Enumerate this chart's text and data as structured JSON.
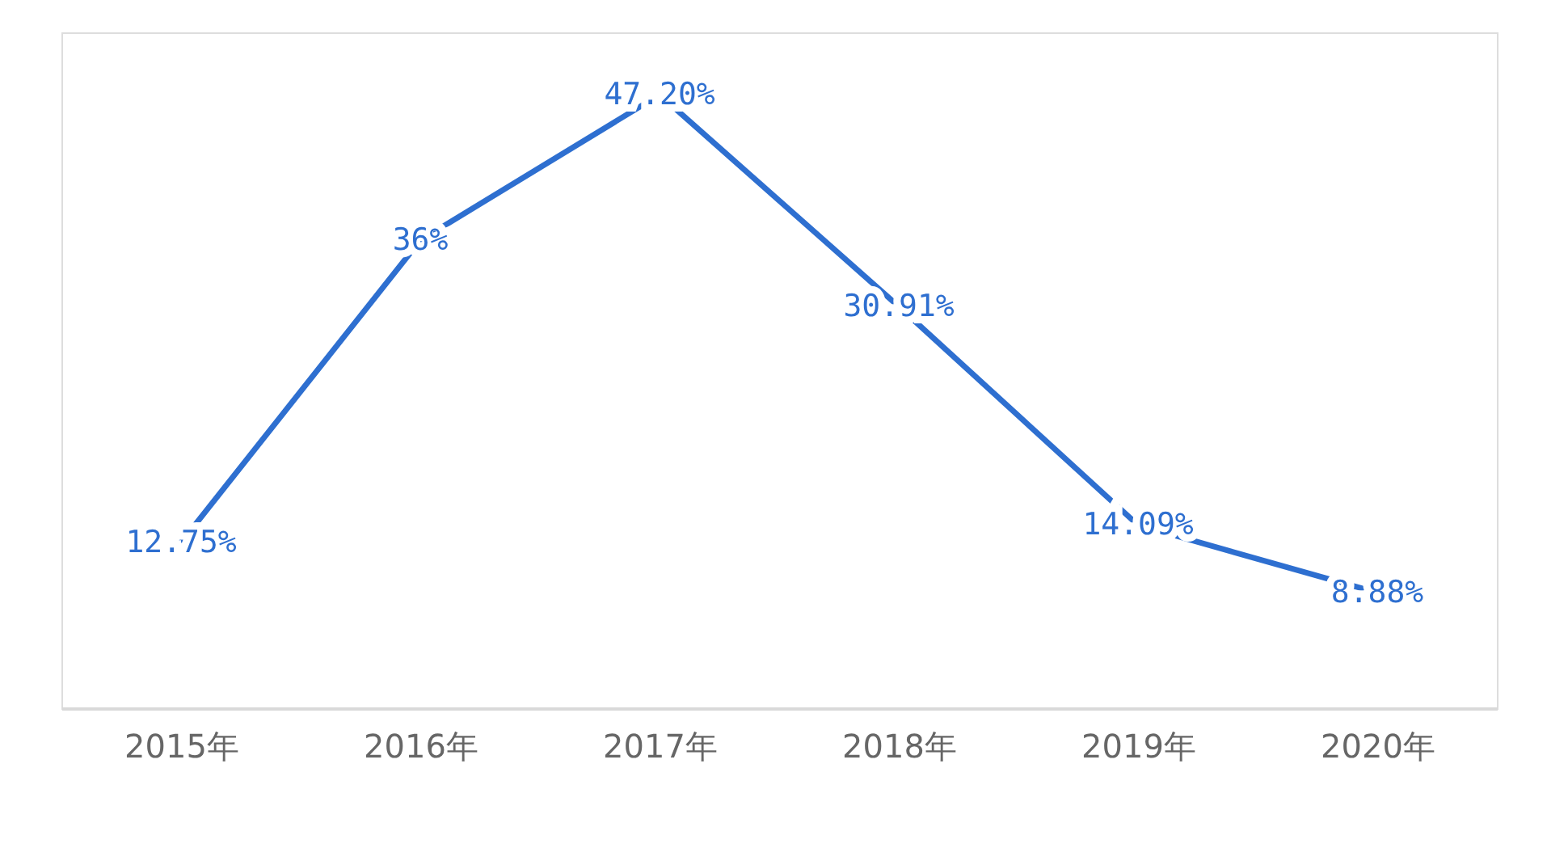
{
  "chart_data": {
    "type": "line",
    "categories": [
      "2015年",
      "2016年",
      "2017年",
      "2018年",
      "2019年",
      "2020年"
    ],
    "series": [
      {
        "color": "#2e6fd0",
        "values": [
          12.75,
          36,
          47.2,
          30.91,
          14.09,
          8.88
        ],
        "value_labels": [
          "12.75%",
          "36%",
          "47.20%",
          "30.91%",
          "14.09%",
          "8.88%"
        ]
      }
    ],
    "ylim": [
      0,
      52
    ],
    "tick_labels": "x",
    "grid": false,
    "marker": "none",
    "line_style": "solid"
  }
}
